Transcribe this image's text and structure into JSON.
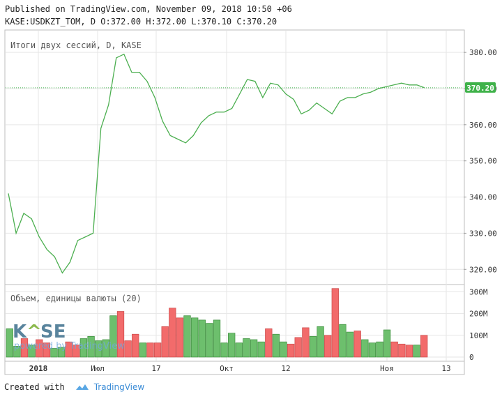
{
  "header": {
    "published": "Published on TradingView.com, November 09, 2018 10:50 +06",
    "ohlc": "KASE:USDKZT_TOM, D O:372.00 H:372.00 L:370.10 C:370.20"
  },
  "footer": {
    "created_with": "Created with",
    "brand": "TradingView"
  },
  "watermark": {
    "logo": "KASE",
    "powered_by": "powered by TradingView"
  },
  "colors": {
    "price_line": "#4caf50",
    "up_volume": "#6dbf6d",
    "down_volume": "#f26b6b",
    "last_price_tag": "#3fb24a",
    "grid": "#e6e6e6"
  },
  "chart_data": [
    {
      "type": "line",
      "title": "Итоги двух сессий, D, KASE",
      "last_price_label": "370.20",
      "ylim": [
        316,
        386
      ],
      "yticks": [
        "380.00",
        "370.00",
        "360.00",
        "350.00",
        "340.00",
        "330.00",
        "320.00"
      ],
      "x_tick_labels": [
        "2018",
        "Июл",
        "17",
        "Окт",
        "12",
        "Ноя",
        "13"
      ],
      "series": [
        {
          "values": [
            341,
            330,
            335.5,
            334,
            329,
            325.5,
            323.5,
            319,
            322,
            328,
            329,
            330,
            359,
            365.5,
            378.5,
            379.5,
            374.5,
            374.5,
            372,
            367.5,
            361,
            357,
            356,
            355,
            357,
            360.5,
            362.5,
            363.5,
            363.5,
            364.5,
            368.5,
            372.5,
            372,
            367.5,
            371.5,
            371,
            368.5,
            367,
            363,
            364,
            366,
            364.5,
            363,
            366.5,
            367.5,
            367.5,
            368.5,
            369,
            370,
            370.5,
            371,
            371.5,
            371,
            371,
            370.2
          ]
        }
      ]
    },
    {
      "type": "bar",
      "title": "Объем, единицы валюты (20)",
      "ylim": [
        0,
        330
      ],
      "yticks": [
        "300M",
        "200M",
        "100M",
        "0"
      ],
      "values": [
        130,
        50,
        85,
        55,
        80,
        65,
        40,
        45,
        70,
        55,
        85,
        95,
        75,
        80,
        190,
        210,
        75,
        105,
        65,
        65,
        65,
        140,
        225,
        180,
        190,
        180,
        170,
        155,
        170,
        65,
        110,
        65,
        85,
        80,
        70,
        130,
        105,
        70,
        60,
        90,
        135,
        95,
        140,
        100,
        315,
        150,
        115,
        120,
        80,
        65,
        70,
        125,
        70,
        60,
        55,
        55,
        100
      ],
      "direction": [
        "up",
        "up",
        "down",
        "up",
        "down",
        "down",
        "up",
        "up",
        "down",
        "down",
        "up",
        "up",
        "up",
        "up",
        "up",
        "down",
        "down",
        "down",
        "up",
        "down",
        "down",
        "down",
        "down",
        "down",
        "up",
        "up",
        "up",
        "up",
        "up",
        "up",
        "up",
        "up",
        "up",
        "up",
        "up",
        "down",
        "up",
        "up",
        "down",
        "down",
        "down",
        "up",
        "up",
        "down",
        "down",
        "up",
        "up",
        "down",
        "up",
        "up",
        "up",
        "up",
        "down",
        "down",
        "down",
        "up",
        "down"
      ]
    }
  ]
}
